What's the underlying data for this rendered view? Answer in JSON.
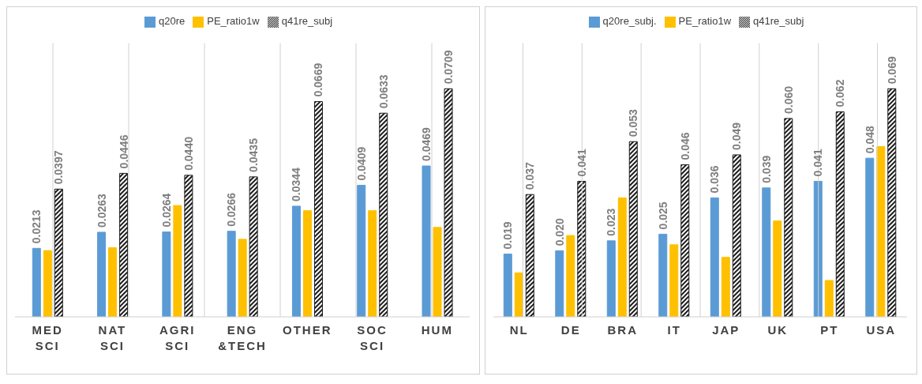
{
  "chart_data": [
    {
      "type": "bar",
      "categories": [
        "MED\nSCI",
        "NAT\nSCI",
        "AGRI\nSCI",
        "ENG\n&TECH",
        "OTHER",
        "SOC\nSCI",
        "HUM"
      ],
      "series": [
        {
          "name": "q20re",
          "color": "#5b9bd5",
          "values": [
            0.0213,
            0.0263,
            0.0264,
            0.0266,
            0.0344,
            0.0409,
            0.0469
          ],
          "value_labels": [
            "0.0213",
            "0.0263",
            "0.0264",
            "0.0266",
            "0.0344",
            "0.0409",
            "0.0469"
          ]
        },
        {
          "name": "PE_ratio1w",
          "color": "#ffc000",
          "values": [
            0.0206,
            0.0215,
            0.0346,
            0.0241,
            0.033,
            0.033,
            0.0278
          ]
        },
        {
          "name": "q41re_subj",
          "color": "#1a1a1a",
          "values": [
            0.0397,
            0.0446,
            0.044,
            0.0435,
            0.0669,
            0.0633,
            0.0709
          ],
          "value_labels": [
            "0.0397",
            "0.0446",
            "0.0440",
            "0.0435",
            "0.0669",
            "0.0633",
            "0.0709"
          ]
        }
      ],
      "legend": "top",
      "grid": "x",
      "tick_labels": "x"
    },
    {
      "type": "bar",
      "categories": [
        "NL",
        "DE",
        "BRA",
        "IT",
        "JAP",
        "UK",
        "PT",
        "USA"
      ],
      "series": [
        {
          "name": "q20re_subj.",
          "color": "#5b9bd5",
          "values": [
            0.019,
            0.02,
            0.023,
            0.025,
            0.036,
            0.039,
            0.041,
            0.048
          ],
          "value_labels": [
            "0.019",
            "0.020",
            "0.023",
            "0.025",
            "0.036",
            "0.039",
            "0.041",
            "0.048"
          ]
        },
        {
          "name": "PE_ratio1w",
          "color": "#ffc000",
          "values": [
            0.0133,
            0.0246,
            0.036,
            0.0218,
            0.018,
            0.029,
            0.011,
            0.0515
          ]
        },
        {
          "name": "q41re_subj",
          "color": "#1a1a1a",
          "values": [
            0.037,
            0.041,
            0.053,
            0.046,
            0.049,
            0.06,
            0.062,
            0.069
          ],
          "value_labels": [
            "0.037",
            "0.041",
            "0.053",
            "0.046",
            "0.049",
            "0.060",
            "0.062",
            "0.069"
          ]
        }
      ],
      "legend": "top",
      "grid": "x",
      "tick_labels": "x"
    }
  ]
}
